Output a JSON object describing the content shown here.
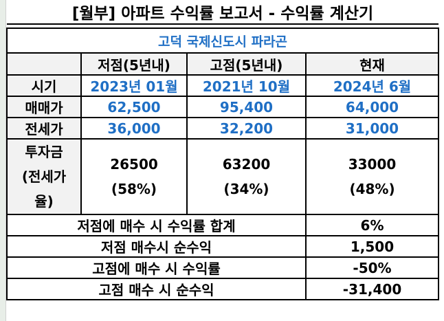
{
  "title": "[월부] 아파트 수익률 보고서 - 수익률 계산기",
  "region": "고덕 국제신도시 파라곤",
  "table": {
    "headers": [
      "저점(5년내)",
      "고점(5년내)",
      "현재"
    ],
    "rows": [
      {
        "label": "시기",
        "values": [
          "2023년 01월",
          "2021년 10월",
          "2024년 6월"
        ]
      },
      {
        "label": "매매가",
        "values": [
          "62,500",
          "95,400",
          "64,000"
        ]
      },
      {
        "label": "전세가",
        "values": [
          "36,000",
          "32,200",
          "31,000"
        ]
      }
    ],
    "investment": {
      "label_lines": [
        "투자금",
        "(전세가",
        "율)"
      ],
      "values": [
        {
          "amount": "26500",
          "ratio": "(58%)"
        },
        {
          "amount": "63200",
          "ratio": "(34%)"
        },
        {
          "amount": "33000",
          "ratio": "(48%)"
        }
      ]
    }
  },
  "summary": [
    {
      "label": "저점에 매수 시 수익률 합계",
      "value": "6%"
    },
    {
      "label": "저점 매수시 순수익",
      "value": "1,500"
    },
    {
      "label": "고점에 매수 시 수익률",
      "value": "-50%"
    },
    {
      "label": "고점 매수 시 순수익",
      "value": "-31,400"
    }
  ]
}
